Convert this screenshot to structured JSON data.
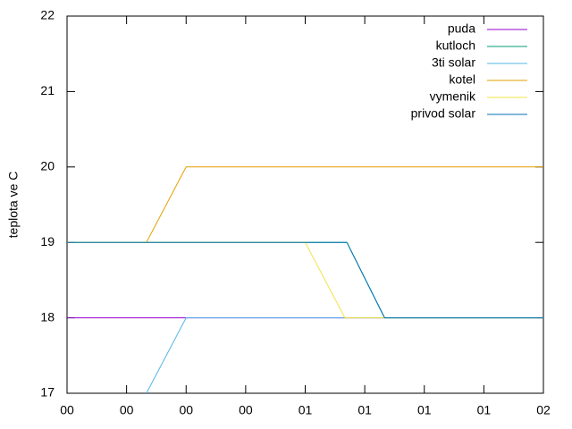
{
  "chart_data": {
    "type": "line",
    "y_label": "teplota ve C",
    "xlim": [
      0,
      120
    ],
    "xticks": [
      {
        "value": 0,
        "label": "00"
      },
      {
        "value": 15,
        "label": "00"
      },
      {
        "value": 30,
        "label": "00"
      },
      {
        "value": 45,
        "label": "00"
      },
      {
        "value": 60,
        "label": "01"
      },
      {
        "value": 75,
        "label": "01"
      },
      {
        "value": 90,
        "label": "01"
      },
      {
        "value": 105,
        "label": "01"
      },
      {
        "value": 120,
        "label": "02"
      }
    ],
    "ylim": [
      17,
      22
    ],
    "yticks": [
      17,
      18,
      19,
      20,
      21,
      22
    ],
    "legend": "top-right",
    "series": [
      {
        "name": "puda",
        "color": "#9400d3",
        "x": [
          0,
          30,
          120
        ],
        "values": [
          18,
          18,
          18
        ]
      },
      {
        "name": "kutloch",
        "color": "#009e73",
        "x": [
          0,
          70.5,
          80,
          120
        ],
        "values": [
          19,
          19,
          18,
          18
        ]
      },
      {
        "name": "3ti solar",
        "color": "#56b4e9",
        "x": [
          20,
          30,
          120
        ],
        "values": [
          17,
          18,
          18
        ]
      },
      {
        "name": "kotel",
        "color": "#e69f00",
        "x": [
          20,
          30,
          120
        ],
        "values": [
          19,
          20,
          20
        ]
      },
      {
        "name": "vymenik",
        "color": "#f0e442",
        "x": [
          0,
          60,
          70,
          120
        ],
        "values": [
          19,
          19,
          18,
          18
        ]
      },
      {
        "name": "privod solar",
        "color": "#0072b2",
        "x": [
          0,
          70.5,
          80,
          120
        ],
        "values": [
          19,
          19,
          18,
          18
        ]
      }
    ]
  }
}
